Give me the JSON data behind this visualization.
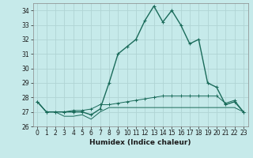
{
  "xlabel": "Humidex (Indice chaleur)",
  "ylabel": "",
  "xlim": [
    -0.5,
    23.5
  ],
  "ylim": [
    26,
    34.5
  ],
  "yticks": [
    26,
    27,
    28,
    29,
    30,
    31,
    32,
    33,
    34
  ],
  "xticks": [
    0,
    1,
    2,
    3,
    4,
    5,
    6,
    7,
    8,
    9,
    10,
    11,
    12,
    13,
    14,
    15,
    16,
    17,
    18,
    19,
    20,
    21,
    22,
    23
  ],
  "background_color": "#c6eaea",
  "grid_color": "#b0d4d4",
  "line_color": "#1a6b5a",
  "line1_x": [
    0,
    1,
    2,
    3,
    4,
    5,
    6,
    7,
    8,
    9,
    10,
    11,
    12,
    13,
    14,
    15,
    16,
    17,
    18,
    19,
    20,
    21,
    22,
    23
  ],
  "line1_y": [
    27.7,
    27.0,
    27.0,
    27.0,
    27.0,
    27.0,
    26.8,
    27.2,
    29.0,
    31.0,
    31.5,
    32.0,
    33.3,
    34.3,
    33.2,
    34.0,
    33.0,
    31.7,
    32.0,
    29.0,
    28.7,
    27.5,
    27.7,
    27.0
  ],
  "line2_x": [
    0,
    1,
    2,
    3,
    4,
    5,
    6,
    7,
    8,
    9,
    10,
    11,
    12,
    13,
    14,
    15,
    16,
    17,
    18,
    19,
    20,
    21,
    22,
    23
  ],
  "line2_y": [
    27.7,
    27.0,
    27.0,
    26.7,
    26.7,
    26.8,
    26.5,
    27.0,
    27.3,
    27.3,
    27.3,
    27.3,
    27.3,
    27.3,
    27.3,
    27.3,
    27.3,
    27.3,
    27.3,
    27.3,
    27.3,
    27.3,
    27.3,
    27.0
  ],
  "line3_x": [
    0,
    1,
    2,
    3,
    4,
    5,
    6,
    7,
    8,
    9,
    10,
    11,
    12,
    13,
    14,
    15,
    16,
    17,
    18,
    19,
    20,
    21,
    22,
    23
  ],
  "line3_y": [
    27.7,
    27.0,
    27.0,
    27.0,
    27.1,
    27.1,
    27.2,
    27.5,
    27.5,
    27.6,
    27.7,
    27.8,
    27.9,
    28.0,
    28.1,
    28.1,
    28.1,
    28.1,
    28.1,
    28.1,
    28.1,
    27.6,
    27.8,
    27.0
  ]
}
